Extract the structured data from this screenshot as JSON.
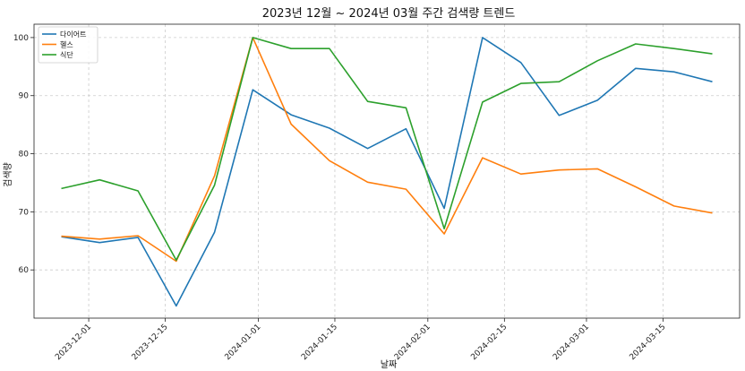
{
  "chart_data": {
    "type": "line",
    "title": "2023년 12월 ~ 2024년 03월 주간 검색량 트렌드",
    "xlabel": "날짜",
    "ylabel": "검색량",
    "x": [
      "2023-11-26",
      "2023-12-03",
      "2023-12-10",
      "2023-12-17",
      "2023-12-24",
      "2023-12-31",
      "2024-01-07",
      "2024-01-14",
      "2024-01-21",
      "2024-01-28",
      "2024-02-04",
      "2024-02-11",
      "2024-02-18",
      "2024-02-25",
      "2024-03-03",
      "2024-03-10",
      "2024-03-17",
      "2024-03-24"
    ],
    "xlim": [
      "2023-11-21",
      "2024-03-29"
    ],
    "ylim": [
      51.7,
      102.3
    ],
    "x_ticks": [
      "2023-12-01",
      "2023-12-15",
      "2024-01-01",
      "2024-01-15",
      "2024-02-01",
      "2024-02-15",
      "2024-03-01",
      "2024-03-15"
    ],
    "y_ticks": [
      60,
      70,
      80,
      90,
      100
    ],
    "grid": true,
    "legend_position": "top-left",
    "series": [
      {
        "name": "다이어트",
        "color": "#1f77b4",
        "values": [
          65.7,
          64.7,
          65.6,
          53.8,
          66.5,
          91.0,
          86.7,
          84.4,
          80.9,
          84.3,
          70.6,
          100.0,
          95.7,
          86.6,
          89.2,
          94.7,
          94.1,
          92.4
        ]
      },
      {
        "name": "헬스",
        "color": "#ff7f0e",
        "values": [
          65.8,
          65.3,
          65.9,
          61.5,
          76.2,
          100.0,
          85.1,
          78.8,
          75.1,
          73.9,
          66.2,
          79.3,
          76.5,
          77.2,
          77.4,
          74.3,
          71.0,
          69.8
        ]
      },
      {
        "name": "식단",
        "color": "#2ca02c",
        "values": [
          74.0,
          75.5,
          73.6,
          61.7,
          74.6,
          100.0,
          98.1,
          98.1,
          89.0,
          87.9,
          67.1,
          88.9,
          92.1,
          92.4,
          96.0,
          98.9,
          98.1,
          97.2
        ]
      }
    ]
  }
}
